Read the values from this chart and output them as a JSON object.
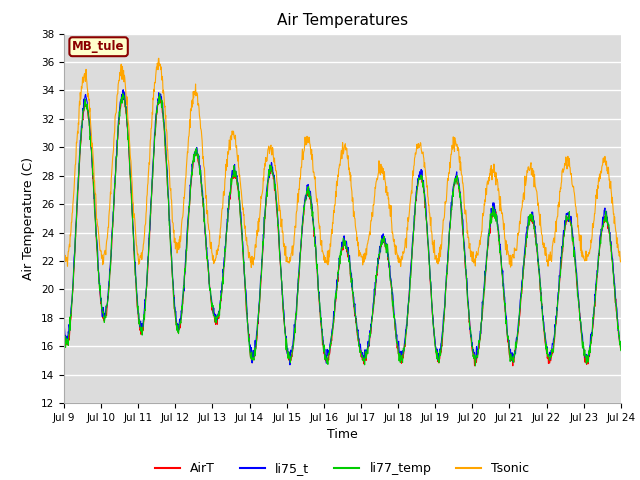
{
  "title": "Air Temperatures",
  "xlabel": "Time",
  "ylabel": "Air Temperature (C)",
  "ylim": [
    12,
    38
  ],
  "yticks": [
    12,
    14,
    16,
    18,
    20,
    22,
    24,
    26,
    28,
    30,
    32,
    34,
    36,
    38
  ],
  "xtick_labels": [
    "Jul 9",
    "Jul 10",
    "Jul 11",
    "Jul 12",
    "Jul 13",
    "Jul 14",
    "Jul 15",
    "Jul 16",
    "Jul 17",
    "Jul 18",
    "Jul 19",
    "Jul 20",
    "Jul 21",
    "Jul 22",
    "Jul 23",
    "Jul 24"
  ],
  "colors": {
    "AirT": "#ff0000",
    "li75_t": "#0000ff",
    "li77_temp": "#00cc00",
    "Tsonic": "#ffa500"
  },
  "bg_color": "#dcdcdc",
  "grid_color": "#ffffff",
  "label_box": {
    "text": "MB_tule",
    "facecolor": "#ffffcc",
    "edgecolor": "#8b0000",
    "textcolor": "#8b0000"
  }
}
